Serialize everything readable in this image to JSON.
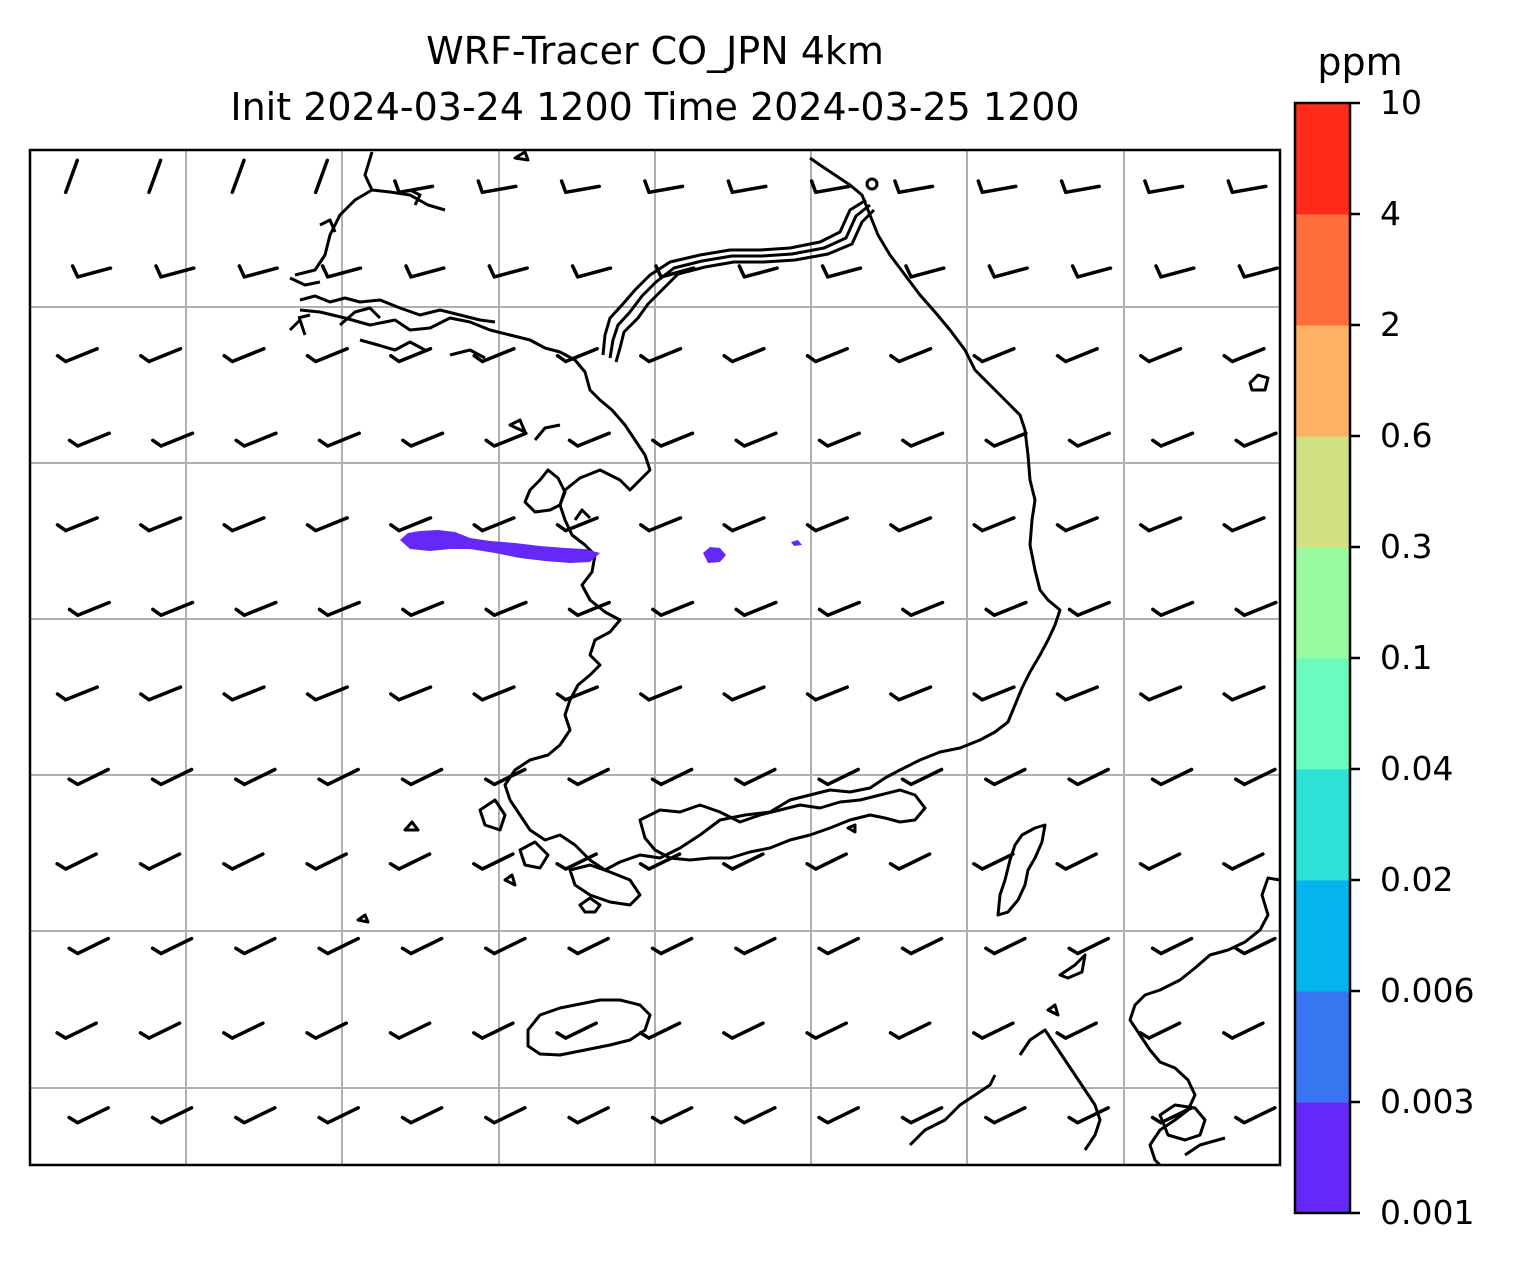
{
  "title": {
    "line1": "WRF-Tracer CO_JPN 4km",
    "line2": "Init 2024-03-24 1200 Time 2024-03-25 1200"
  },
  "colorbar": {
    "unit": "ppm",
    "levels": [
      "0.001",
      "0.003",
      "0.006",
      "0.02",
      "0.04",
      "0.1",
      "0.3",
      "0.6",
      "2",
      "4",
      "10"
    ],
    "colors": [
      "#6428f8",
      "#3776f0",
      "#04b4ec",
      "#2ee1d6",
      "#6afcbe",
      "#9afa9e",
      "#d0e184",
      "#feb063",
      "#ff6f3d",
      "#ff2a1a"
    ]
  },
  "map": {
    "gridlines": true,
    "gridline_color": "#b0b0b0",
    "coastline_color": "#000000",
    "tracer_plume": {
      "level_bin": "0.001–0.003",
      "color": "#6428f8"
    },
    "wind_barbs": {
      "color": "#000000",
      "dominant_direction": "west-northwest"
    }
  }
}
